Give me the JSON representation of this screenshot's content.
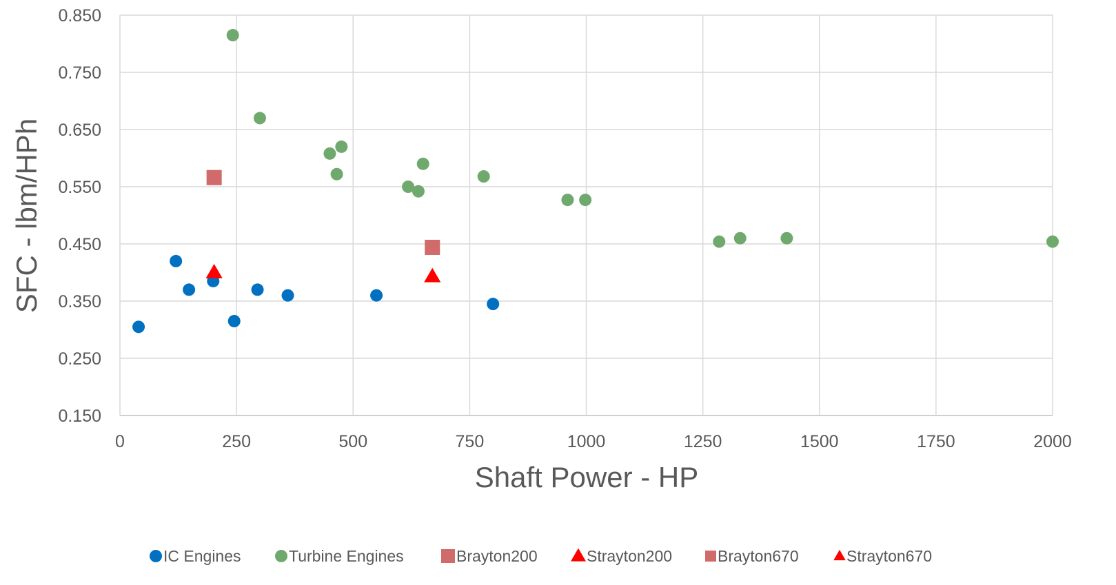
{
  "chart_data": {
    "type": "scatter",
    "title": "",
    "xlabel": "Shaft Power - HP",
    "ylabel": "SFC - lbm/HPh",
    "xlim": [
      0,
      2000
    ],
    "ylim": [
      0.15,
      0.85
    ],
    "xticks": [
      0,
      250,
      500,
      750,
      1000,
      1250,
      1500,
      1750,
      2000
    ],
    "xtick_labels": [
      "0",
      "250",
      "500",
      "750",
      "1000",
      "1250",
      "1500",
      "1750",
      "2000"
    ],
    "yticks": [
      0.15,
      0.25,
      0.35,
      0.45,
      0.55,
      0.65,
      0.75,
      0.85
    ],
    "ytick_labels": [
      "0.150",
      "0.250",
      "0.350",
      "0.450",
      "0.550",
      "0.650",
      "0.750",
      "0.850"
    ],
    "grid": "vertical and horizontal major gridlines",
    "legend_position": "bottom",
    "series": [
      {
        "name": "IC Engines",
        "marker": "circle",
        "color": "#0070C0",
        "points": [
          [
            40,
            0.305
          ],
          [
            120,
            0.42
          ],
          [
            148,
            0.37
          ],
          [
            200,
            0.385
          ],
          [
            245,
            0.315
          ],
          [
            295,
            0.37
          ],
          [
            360,
            0.36
          ],
          [
            550,
            0.36
          ],
          [
            800,
            0.345
          ]
        ]
      },
      {
        "name": "Turbine Engines",
        "marker": "circle",
        "color": "#70A96E",
        "points": [
          [
            242,
            0.815
          ],
          [
            300,
            0.67
          ],
          [
            450,
            0.608
          ],
          [
            475,
            0.62
          ],
          [
            465,
            0.572
          ],
          [
            650,
            0.59
          ],
          [
            618,
            0.55
          ],
          [
            640,
            0.542
          ],
          [
            780,
            0.568
          ],
          [
            960,
            0.527
          ],
          [
            998,
            0.527
          ],
          [
            1285,
            0.454
          ],
          [
            1330,
            0.46
          ],
          [
            1430,
            0.46
          ],
          [
            2000,
            0.454
          ]
        ]
      },
      {
        "name": "Brayton200",
        "marker": "square",
        "color": "#D16A6A",
        "points": [
          [
            202,
            0.566
          ]
        ]
      },
      {
        "name": "Strayton200",
        "marker": "triangle",
        "color": "#FF0000",
        "points": [
          [
            202,
            0.4
          ]
        ]
      },
      {
        "name": "Brayton670",
        "marker": "square",
        "color": "#D16A6A",
        "points": [
          [
            670,
            0.444
          ]
        ]
      },
      {
        "name": "Strayton670",
        "marker": "triangle",
        "color": "#FF0000",
        "points": [
          [
            670,
            0.393
          ]
        ]
      }
    ]
  },
  "colors": {
    "grid": "#D9D9D9",
    "text": "#595959"
  }
}
